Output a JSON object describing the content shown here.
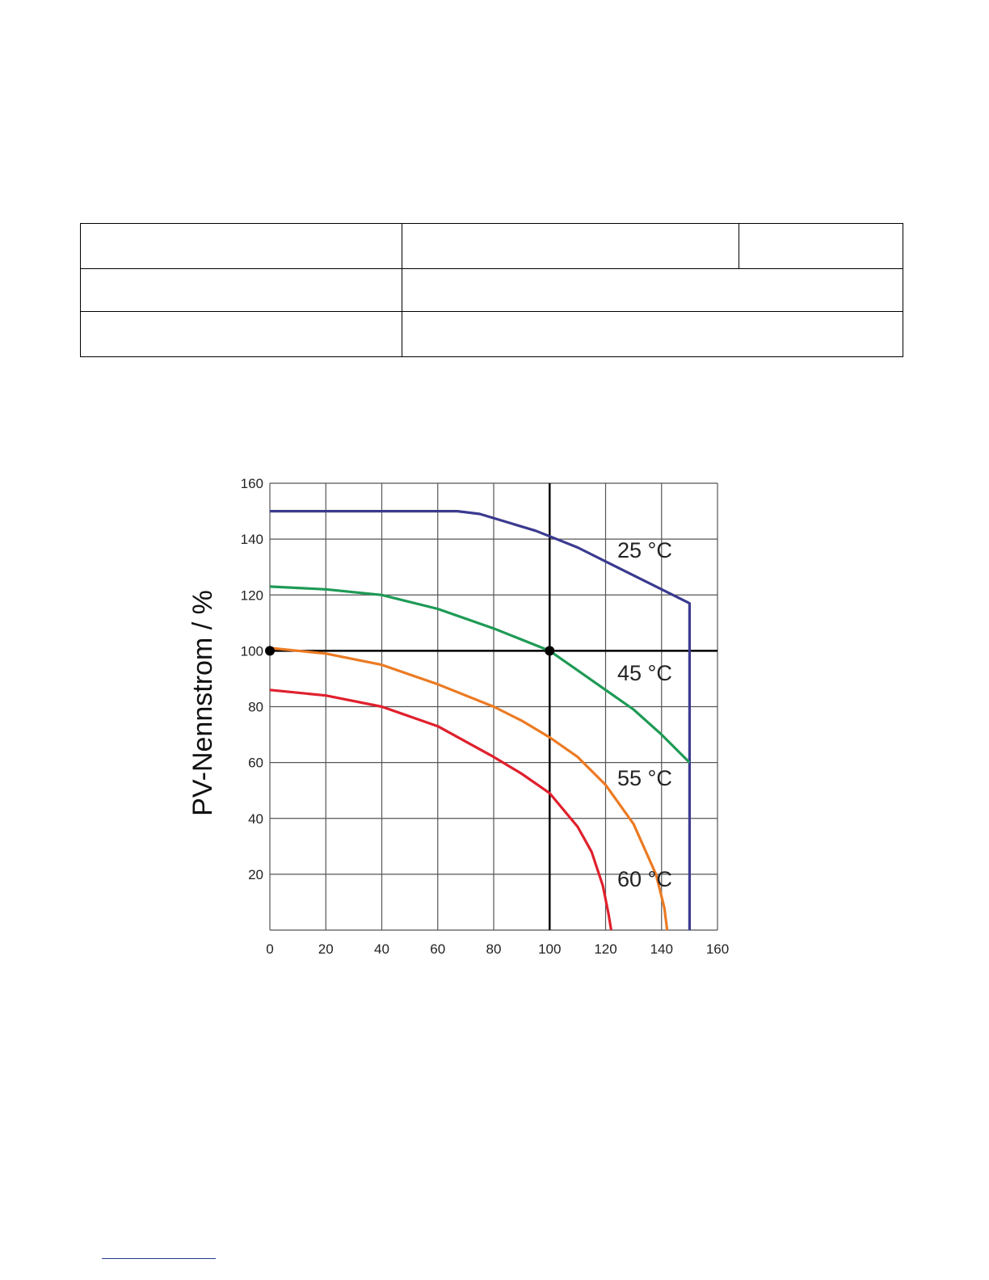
{
  "chart_data": {
    "type": "line",
    "ylabel": "PV-Nennstrom / %",
    "xlabel": "",
    "xlim": [
      0,
      160
    ],
    "ylim": [
      0,
      160
    ],
    "x_ticks": [
      "0",
      "20",
      "40",
      "60",
      "80",
      "100",
      "120",
      "140",
      "160"
    ],
    "y_ticks": [
      "20",
      "40",
      "60",
      "80",
      "100",
      "120",
      "140",
      "160"
    ],
    "grid": true,
    "reference_lines": {
      "x": 100,
      "y": 100
    },
    "markers": [
      {
        "x": 0,
        "y": 100
      },
      {
        "x": 100,
        "y": 100
      }
    ],
    "series": [
      {
        "name": "25 °C",
        "color": "#3b3a8f",
        "points": [
          [
            0,
            150
          ],
          [
            67,
            150
          ],
          [
            75,
            149
          ],
          [
            85,
            146
          ],
          [
            95,
            143
          ],
          [
            100,
            141
          ],
          [
            110,
            137
          ],
          [
            120,
            132
          ],
          [
            130,
            127
          ],
          [
            140,
            122
          ],
          [
            150,
            117
          ],
          [
            150,
            0
          ]
        ]
      },
      {
        "name": "45 °C",
        "color": "#1e9a55",
        "points": [
          [
            0,
            123
          ],
          [
            20,
            122
          ],
          [
            40,
            120
          ],
          [
            60,
            115
          ],
          [
            80,
            108
          ],
          [
            90,
            104
          ],
          [
            100,
            100
          ],
          [
            110,
            93
          ],
          [
            120,
            86
          ],
          [
            130,
            79
          ],
          [
            140,
            70
          ],
          [
            150,
            60
          ]
        ]
      },
      {
        "name": "55 °C",
        "color": "#ec7a22",
        "points": [
          [
            0,
            101
          ],
          [
            20,
            99
          ],
          [
            40,
            95
          ],
          [
            60,
            88
          ],
          [
            80,
            80
          ],
          [
            90,
            75
          ],
          [
            100,
            69
          ],
          [
            110,
            62
          ],
          [
            120,
            52
          ],
          [
            130,
            38
          ],
          [
            138,
            20
          ],
          [
            141,
            8
          ],
          [
            142,
            0
          ]
        ]
      },
      {
        "name": "60 °C",
        "color": "#e0202d",
        "points": [
          [
            0,
            86
          ],
          [
            20,
            84
          ],
          [
            40,
            80
          ],
          [
            60,
            73
          ],
          [
            80,
            62
          ],
          [
            90,
            56
          ],
          [
            100,
            49
          ],
          [
            110,
            37
          ],
          [
            115,
            28
          ],
          [
            119,
            16
          ],
          [
            121,
            6
          ],
          [
            122,
            0
          ]
        ]
      }
    ]
  }
}
